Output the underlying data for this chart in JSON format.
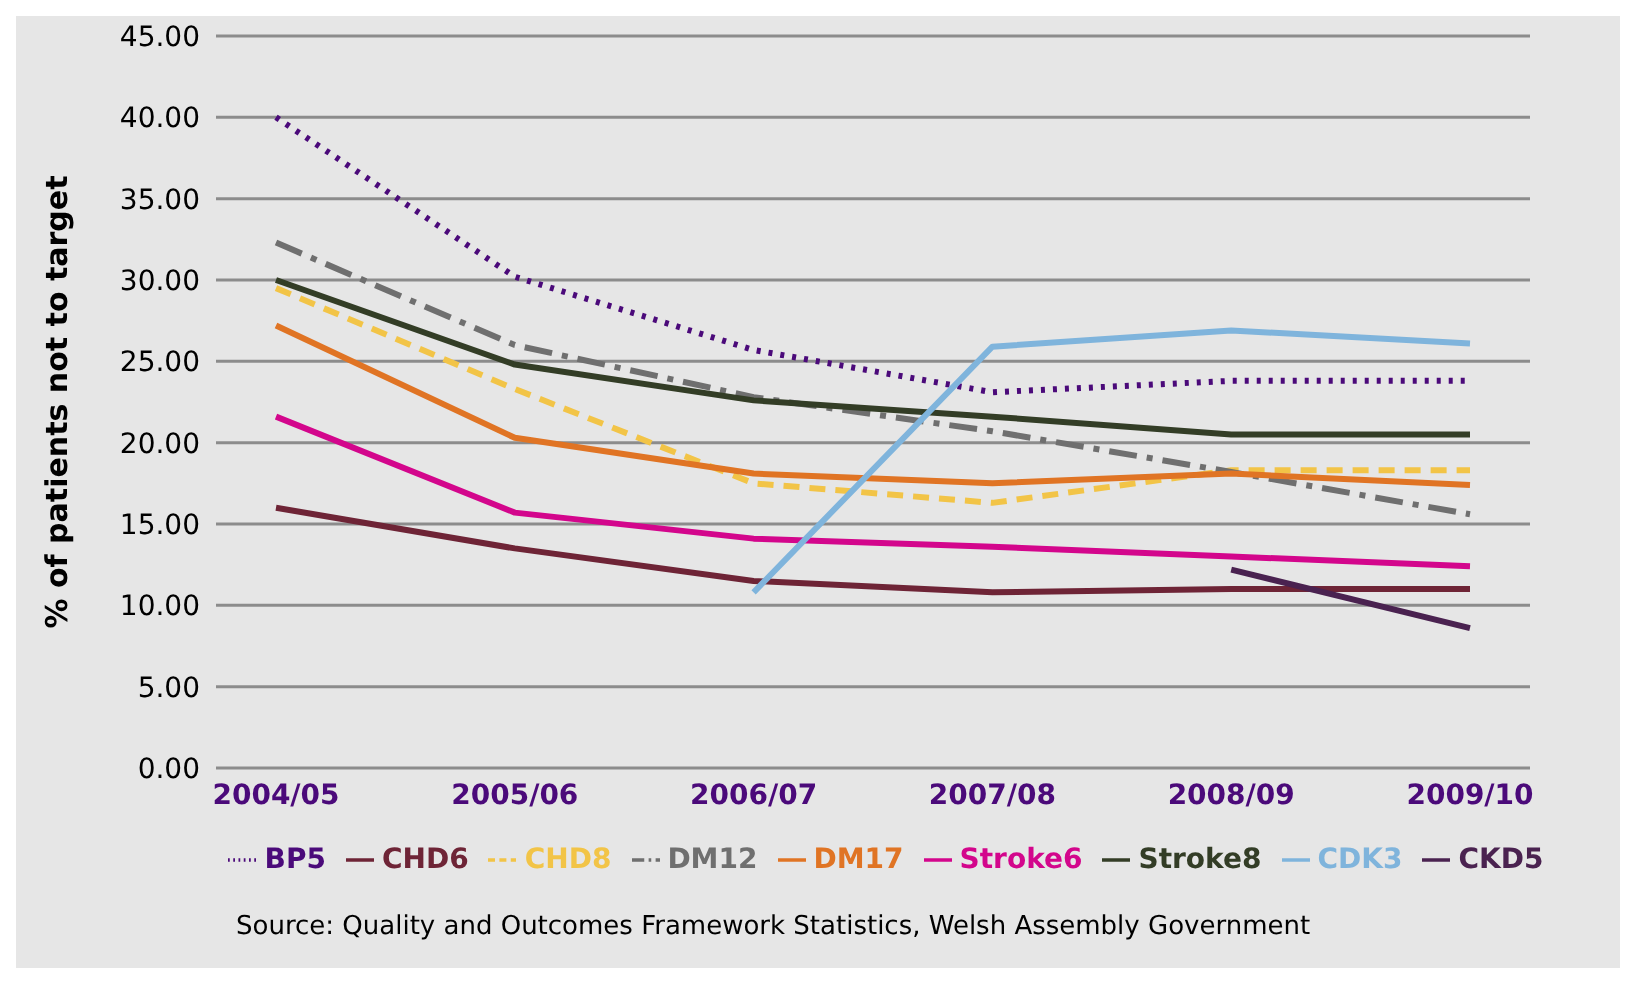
{
  "chart_data": {
    "type": "line",
    "ylabel": "% of patients not to target",
    "categories": [
      "2004/05",
      "2005/06",
      "2006/07",
      "2007/08",
      "2008/09",
      "2009/10"
    ],
    "ylim": [
      0,
      45
    ],
    "yticks": [
      {
        "value": 0,
        "label": "0.00"
      },
      {
        "value": 5,
        "label": "5.00"
      },
      {
        "value": 10,
        "label": "10.00"
      },
      {
        "value": 15,
        "label": "15.00"
      },
      {
        "value": 20,
        "label": "20.00"
      },
      {
        "value": 25,
        "label": "25.00"
      },
      {
        "value": 30,
        "label": "30.00"
      },
      {
        "value": 35,
        "label": "35.00"
      },
      {
        "value": 40,
        "label": "40.00"
      },
      {
        "value": 45,
        "label": "45.00"
      }
    ],
    "grid": "y",
    "legend": "bottom",
    "marker": "none",
    "series": [
      {
        "name": "BP5",
        "color": "#4b0a7a",
        "line_style": "dotted",
        "values": [
          40.0,
          30.2,
          25.7,
          23.1,
          23.8,
          23.8
        ]
      },
      {
        "name": "CHD6",
        "color": "#6e2436",
        "line_style": "solid",
        "values": [
          16.0,
          13.5,
          11.5,
          10.8,
          11.0,
          11.0
        ]
      },
      {
        "name": "CHD8",
        "color": "#f2c447",
        "line_style": "dashed",
        "values": [
          29.5,
          23.3,
          17.5,
          16.3,
          18.3,
          18.3
        ]
      },
      {
        "name": "DM12",
        "color": "#6f6f6f",
        "line_style": "dashdot",
        "values": [
          32.3,
          26.0,
          22.8,
          20.7,
          18.2,
          15.6
        ]
      },
      {
        "name": "DM17",
        "color": "#e07424",
        "line_style": "solid",
        "values": [
          27.2,
          20.3,
          18.1,
          17.5,
          18.1,
          17.4
        ]
      },
      {
        "name": "Stroke6",
        "color": "#d3068c",
        "line_style": "solid",
        "values": [
          21.6,
          15.7,
          14.1,
          13.6,
          13.0,
          12.4
        ]
      },
      {
        "name": "Stroke8",
        "color": "#333d26",
        "line_style": "solid",
        "values": [
          30.0,
          24.8,
          22.6,
          21.6,
          20.5,
          20.5
        ]
      },
      {
        "name": "CDK3",
        "color": "#7fb4dc",
        "line_style": "solid",
        "values": [
          null,
          null,
          10.8,
          25.9,
          26.9,
          26.1
        ]
      },
      {
        "name": "CKD5",
        "color": "#4a2250",
        "line_style": "solid",
        "values": [
          null,
          null,
          null,
          null,
          12.2,
          8.6
        ]
      }
    ],
    "annotations": [
      "Source: Quality and Outcomes Framework Statistics, Welsh Assembly Government"
    ]
  }
}
